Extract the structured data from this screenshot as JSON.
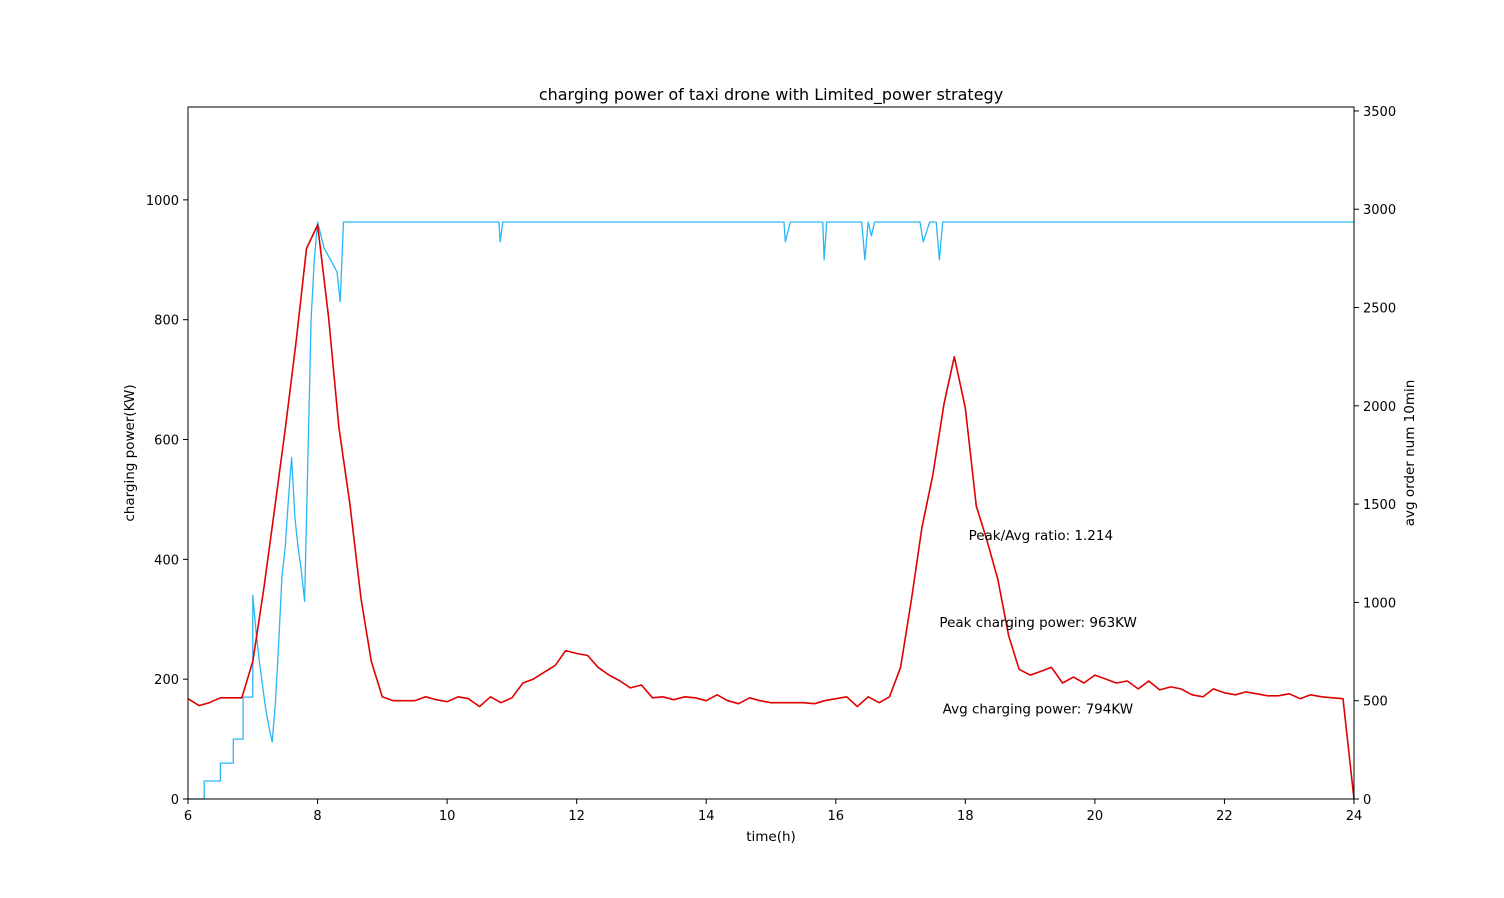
{
  "chart_data": {
    "type": "line",
    "title": "charging power of taxi drone with Limited_power strategy",
    "xlabel": "time(h)",
    "ylabel": "charging power(KW)",
    "y2label": "avg order num 10min",
    "xlim": [
      6,
      24
    ],
    "ylim": [
      0,
      1155
    ],
    "y2lim": [
      0,
      3520
    ],
    "xticks": [
      6,
      8,
      10,
      12,
      14,
      16,
      18,
      20,
      22,
      24
    ],
    "yticks": [
      0,
      200,
      400,
      600,
      800,
      1000
    ],
    "y2ticks": [
      0,
      500,
      1000,
      1500,
      2000,
      2500,
      3000,
      3500
    ],
    "grid": false,
    "annotations": [
      {
        "text": "Peak/Avg ratio: 1.214",
        "x": 18.05,
        "y": 432
      },
      {
        "text": "Peak charging power: 963KW",
        "x": 17.6,
        "y": 287
      },
      {
        "text": "Avg charging power: 794KW",
        "x": 17.65,
        "y": 143
      }
    ],
    "series": [
      {
        "color": "#29b6f6",
        "axis": "left",
        "x": [
          6.0,
          6.25,
          6.25,
          6.5,
          6.5,
          6.7,
          6.7,
          6.85,
          6.85,
          7.0,
          7.0,
          7.05,
          7.1,
          7.15,
          7.2,
          7.25,
          7.3,
          7.35,
          7.4,
          7.45,
          7.5,
          7.55,
          7.6,
          7.65,
          7.7,
          7.75,
          7.8,
          7.85,
          7.9,
          7.95,
          8.0,
          8.1,
          8.2,
          8.3,
          8.35,
          8.4,
          8.5,
          10.8,
          10.82,
          10.86,
          10.9,
          14.5,
          15.2,
          15.22,
          15.3,
          15.8,
          15.82,
          15.86,
          16.4,
          16.45,
          16.5,
          16.55,
          16.6,
          17.3,
          17.35,
          17.45,
          17.55,
          17.6,
          17.65,
          24.0
        ],
        "values": [
          0,
          0,
          30,
          30,
          60,
          60,
          100,
          100,
          170,
          170,
          340,
          280,
          230,
          190,
          150,
          120,
          95,
          160,
          260,
          370,
          420,
          500,
          570,
          470,
          420,
          380,
          330,
          560,
          800,
          900,
          963,
          920,
          900,
          880,
          830,
          963,
          963,
          963,
          930,
          963,
          963,
          963,
          963,
          930,
          963,
          963,
          900,
          963,
          963,
          900,
          963,
          940,
          963,
          963,
          930,
          963,
          963,
          900,
          963,
          963
        ]
      },
      {
        "color": "#e00000",
        "axis": "right",
        "x": [
          6.0,
          6.17,
          6.33,
          6.5,
          6.67,
          6.83,
          7.0,
          7.17,
          7.33,
          7.5,
          7.67,
          7.83,
          8.0,
          8.17,
          8.33,
          8.5,
          8.67,
          8.83,
          9.0,
          9.17,
          9.33,
          9.5,
          9.67,
          9.83,
          10.0,
          10.17,
          10.33,
          10.5,
          10.67,
          10.83,
          11.0,
          11.17,
          11.33,
          11.5,
          11.67,
          11.83,
          12.0,
          12.17,
          12.33,
          12.5,
          12.67,
          12.83,
          13.0,
          13.17,
          13.33,
          13.5,
          13.67,
          13.83,
          14.0,
          14.17,
          14.33,
          14.5,
          14.67,
          14.83,
          15.0,
          15.17,
          15.33,
          15.5,
          15.67,
          15.83,
          16.0,
          16.17,
          16.33,
          16.5,
          16.67,
          16.83,
          17.0,
          17.17,
          17.33,
          17.5,
          17.67,
          17.83,
          18.0,
          18.17,
          18.33,
          18.5,
          18.67,
          18.83,
          19.0,
          19.17,
          19.33,
          19.5,
          19.67,
          19.83,
          20.0,
          20.17,
          20.33,
          20.5,
          20.67,
          20.83,
          21.0,
          21.17,
          21.33,
          21.5,
          21.67,
          21.83,
          22.0,
          22.17,
          22.33,
          22.5,
          22.67,
          22.83,
          23.0,
          23.17,
          23.33,
          23.5,
          23.67,
          23.83,
          24.0
        ],
        "values": [
          510,
          475,
          490,
          515,
          515,
          515,
          700,
          1070,
          1460,
          1880,
          2330,
          2800,
          2920,
          2450,
          1890,
          1500,
          1020,
          700,
          520,
          500,
          500,
          500,
          520,
          505,
          495,
          520,
          510,
          470,
          520,
          490,
          515,
          590,
          610,
          645,
          680,
          755,
          740,
          730,
          670,
          630,
          600,
          565,
          580,
          515,
          520,
          505,
          520,
          515,
          500,
          530,
          500,
          485,
          515,
          500,
          490,
          490,
          490,
          490,
          485,
          500,
          510,
          520,
          470,
          520,
          490,
          520,
          670,
          1020,
          1380,
          1650,
          2010,
          2250,
          1990,
          1490,
          1320,
          1120,
          830,
          660,
          630,
          650,
          670,
          590,
          620,
          590,
          630,
          610,
          590,
          600,
          560,
          600,
          555,
          570,
          560,
          530,
          520,
          560,
          540,
          530,
          545,
          535,
          525,
          525,
          535,
          510,
          530,
          520,
          515,
          510,
          0
        ]
      }
    ]
  }
}
